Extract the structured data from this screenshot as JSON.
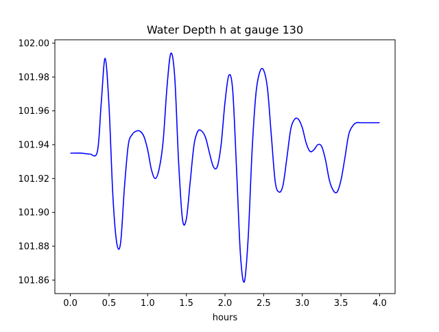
{
  "chart_data": {
    "type": "line",
    "title": "Water Depth h at gauge 130",
    "xlabel": "hours",
    "ylabel": "",
    "xlim": [
      -0.2,
      4.2
    ],
    "ylim": [
      101.852,
      102.002
    ],
    "xticks": [
      0.0,
      0.5,
      1.0,
      1.5,
      2.0,
      2.5,
      3.0,
      3.5,
      4.0
    ],
    "xtick_labels": [
      "0.0",
      "0.5",
      "1.0",
      "1.5",
      "2.0",
      "2.5",
      "3.0",
      "3.5",
      "4.0"
    ],
    "yticks": [
      101.86,
      101.88,
      101.9,
      101.92,
      101.94,
      101.96,
      101.98,
      102.0
    ],
    "ytick_labels": [
      "101.86",
      "101.88",
      "101.90",
      "101.92",
      "101.94",
      "101.96",
      "101.98",
      "102.00"
    ],
    "grid": false,
    "series": [
      {
        "color": "#0000ff",
        "x": [
          0.0,
          0.15,
          0.25,
          0.35,
          0.4,
          0.45,
          0.5,
          0.55,
          0.6,
          0.65,
          0.7,
          0.75,
          0.8,
          0.85,
          0.9,
          0.95,
          1.0,
          1.05,
          1.1,
          1.15,
          1.2,
          1.25,
          1.3,
          1.35,
          1.4,
          1.45,
          1.5,
          1.55,
          1.6,
          1.65,
          1.7,
          1.75,
          1.8,
          1.85,
          1.9,
          1.95,
          2.0,
          2.05,
          2.1,
          2.15,
          2.2,
          2.25,
          2.3,
          2.35,
          2.4,
          2.45,
          2.5,
          2.55,
          2.6,
          2.65,
          2.7,
          2.75,
          2.8,
          2.85,
          2.9,
          2.95,
          3.0,
          3.05,
          3.1,
          3.15,
          3.2,
          3.25,
          3.3,
          3.35,
          3.4,
          3.45,
          3.5,
          3.55,
          3.6,
          3.65,
          3.7,
          3.75,
          3.8,
          3.85,
          3.9,
          3.95,
          4.0
        ],
        "y": [
          101.935,
          101.935,
          101.9345,
          101.936,
          101.965,
          101.991,
          101.963,
          101.91,
          101.882,
          101.882,
          101.915,
          101.94,
          101.946,
          101.948,
          101.948,
          101.945,
          101.937,
          101.925,
          101.92,
          101.926,
          101.942,
          101.974,
          101.994,
          101.98,
          101.93,
          101.896,
          101.896,
          101.918,
          101.94,
          101.948,
          101.948,
          101.944,
          101.935,
          101.927,
          101.927,
          101.94,
          101.965,
          101.981,
          101.972,
          101.925,
          101.875,
          101.859,
          101.885,
          101.936,
          101.97,
          101.983,
          101.984,
          101.973,
          101.945,
          101.918,
          101.912,
          101.916,
          101.932,
          101.949,
          101.955,
          101.955,
          101.95,
          101.941,
          101.936,
          101.937,
          101.94,
          101.939,
          101.931,
          101.919,
          101.913,
          101.912,
          101.919,
          101.932,
          101.946,
          101.951,
          101.953,
          101.953,
          101.953,
          101.953,
          101.953,
          101.953,
          101.953
        ]
      }
    ]
  }
}
